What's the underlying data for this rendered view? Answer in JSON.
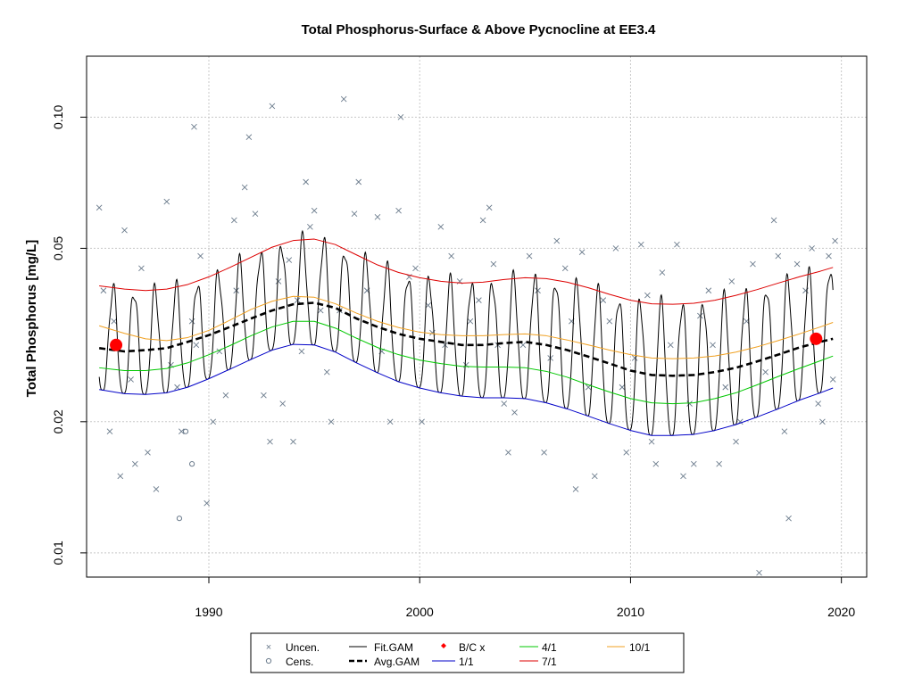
{
  "chart_data": {
    "type": "scatter",
    "title": "Total Phosphorus-Surface & Above Pycnocline at EE3.4",
    "xlabel": "",
    "ylabel": "Total Phosphorus [mg/L]",
    "y_scale": "log",
    "xlim": [
      1984.2,
      2021.2
    ],
    "ylim": [
      0.0088,
      0.138
    ],
    "x_ticks": [
      1990,
      2000,
      2010,
      2020
    ],
    "y_ticks": [
      0.01,
      0.02,
      0.05,
      0.1
    ],
    "y_tick_labels": [
      "0.01",
      "0.02",
      "0.05",
      "0.10"
    ],
    "grid": true,
    "legend_position": "bottom",
    "legend": [
      {
        "label": "Uncen.",
        "symbol": "x",
        "color": "#6b7b8c"
      },
      {
        "label": "Cens.",
        "symbol": "circle",
        "color": "#6b7b8c"
      },
      {
        "label": "Fit.GAM",
        "symbol": "line",
        "color": "#000000"
      },
      {
        "label": "Avg.GAM",
        "symbol": "dashed",
        "color": "#000000"
      },
      {
        "label": "B/C x",
        "symbol": "diamond",
        "color": "#ff0000"
      },
      {
        "label": "1/1",
        "symbol": "line",
        "color": "#0000c8"
      },
      {
        "label": "4/1",
        "symbol": "line",
        "color": "#00c800"
      },
      {
        "label": "7/1",
        "symbol": "line",
        "color": "#dd0000"
      },
      {
        "label": "10/1",
        "symbol": "line",
        "color": "#f0a020"
      }
    ],
    "colors": {
      "uncensored": "#6b7b8c",
      "fit_gam": "#000000",
      "avg_gam": "#000000",
      "baseline_current": "#ff0000",
      "jan_1": "#0000c8",
      "apr_1": "#00c800",
      "jul_1": "#dd0000",
      "oct_1": "#f0a020",
      "grid": "#c8c8c8"
    },
    "series": [
      {
        "name": "Avg.GAM",
        "x": [
          1984.8,
          1986,
          1987,
          1988,
          1989,
          1990,
          1991,
          1992,
          1993,
          1994,
          1995,
          1996,
          1997,
          1998,
          1999,
          2000,
          2001,
          2002,
          2003,
          2004,
          2005,
          2006,
          2007,
          2008,
          2009,
          2010,
          2011,
          2012,
          2013,
          2014,
          2015,
          2016,
          2017,
          2018,
          2019,
          2019.6
        ],
        "y": [
          0.0295,
          0.029,
          0.0292,
          0.0295,
          0.0305,
          0.0316,
          0.033,
          0.0345,
          0.036,
          0.0372,
          0.0375,
          0.0365,
          0.0345,
          0.033,
          0.0318,
          0.031,
          0.0305,
          0.03,
          0.03,
          0.0303,
          0.0305,
          0.03,
          0.0292,
          0.0282,
          0.0272,
          0.0262,
          0.0256,
          0.0255,
          0.0256,
          0.026,
          0.0266,
          0.0275,
          0.0285,
          0.0296,
          0.0305,
          0.031
        ]
      },
      {
        "name": "1/1",
        "x": [
          1984.8,
          1986,
          1987,
          1988,
          1989,
          1990,
          1991,
          1992,
          1993,
          1994,
          1995,
          1996,
          1997,
          1998,
          1999,
          2000,
          2001,
          2002,
          2003,
          2004,
          2005,
          2006,
          2007,
          2008,
          2009,
          2010,
          2011,
          2012,
          2013,
          2014,
          2015,
          2016,
          2017,
          2018,
          2019,
          2019.6
        ],
        "y": [
          0.0237,
          0.0232,
          0.0231,
          0.0233,
          0.024,
          0.0251,
          0.0264,
          0.0278,
          0.0292,
          0.0301,
          0.03,
          0.0289,
          0.0273,
          0.0259,
          0.0247,
          0.0239,
          0.0233,
          0.0229,
          0.0227,
          0.0227,
          0.0226,
          0.0221,
          0.0214,
          0.0206,
          0.0198,
          0.0191,
          0.0186,
          0.0186,
          0.0187,
          0.0191,
          0.0197,
          0.0205,
          0.0214,
          0.0224,
          0.0233,
          0.0239
        ]
      },
      {
        "name": "4/1",
        "x": [
          1984.8,
          1986,
          1987,
          1988,
          1989,
          1990,
          1991,
          1992,
          1993,
          1994,
          1995,
          1996,
          1997,
          1998,
          1999,
          2000,
          2001,
          2002,
          2003,
          2004,
          2005,
          2006,
          2007,
          2008,
          2009,
          2010,
          2011,
          2012,
          2013,
          2014,
          2015,
          2016,
          2017,
          2018,
          2019,
          2019.6
        ],
        "y": [
          0.0266,
          0.0262,
          0.0262,
          0.0265,
          0.0273,
          0.0285,
          0.0299,
          0.0315,
          0.033,
          0.034,
          0.034,
          0.0328,
          0.0311,
          0.0296,
          0.0285,
          0.0277,
          0.0272,
          0.0268,
          0.0267,
          0.0267,
          0.0266,
          0.0261,
          0.0253,
          0.0243,
          0.0234,
          0.0226,
          0.0221,
          0.022,
          0.0221,
          0.0226,
          0.0233,
          0.0243,
          0.0254,
          0.0265,
          0.0276,
          0.0283
        ]
      },
      {
        "name": "7/1",
        "x": [
          1984.8,
          1986,
          1987,
          1988,
          1989,
          1990,
          1991,
          1992,
          1993,
          1994,
          1995,
          1996,
          1997,
          1998,
          1999,
          2000,
          2001,
          2002,
          2003,
          2004,
          2005,
          2006,
          2007,
          2008,
          2009,
          2010,
          2011,
          2012,
          2013,
          2014,
          2015,
          2016,
          2017,
          2018,
          2019,
          2019.6
        ],
        "y": [
          0.041,
          0.0403,
          0.04,
          0.0403,
          0.0413,
          0.043,
          0.0452,
          0.0477,
          0.0503,
          0.0521,
          0.0525,
          0.051,
          0.0483,
          0.0458,
          0.044,
          0.0428,
          0.042,
          0.0416,
          0.0418,
          0.0424,
          0.0428,
          0.0426,
          0.0418,
          0.0406,
          0.0392,
          0.038,
          0.0373,
          0.0372,
          0.0374,
          0.038,
          0.039,
          0.0402,
          0.0416,
          0.043,
          0.0443,
          0.0452
        ]
      },
      {
        "name": "10/1",
        "x": [
          1984.8,
          1986,
          1987,
          1988,
          1989,
          1990,
          1991,
          1992,
          1993,
          1994,
          1995,
          1996,
          1997,
          1998,
          1999,
          2000,
          2001,
          2002,
          2003,
          2004,
          2005,
          2006,
          2007,
          2008,
          2009,
          2010,
          2011,
          2012,
          2013,
          2014,
          2015,
          2016,
          2017,
          2018,
          2019,
          2019.6
        ],
        "y": [
          0.0332,
          0.0319,
          0.031,
          0.0307,
          0.0312,
          0.0324,
          0.0342,
          0.0362,
          0.0378,
          0.0388,
          0.0386,
          0.0373,
          0.0355,
          0.034,
          0.0329,
          0.0321,
          0.0317,
          0.0315,
          0.0315,
          0.0317,
          0.0318,
          0.0315,
          0.0308,
          0.03,
          0.0292,
          0.0285,
          0.028,
          0.0279,
          0.028,
          0.0283,
          0.0289,
          0.0297,
          0.0307,
          0.0318,
          0.033,
          0.0338
        ]
      },
      {
        "name": "B/C x",
        "x": [
          1985.6,
          2018.8
        ],
        "y": [
          0.03,
          0.031
        ]
      },
      {
        "name": "Uncen.",
        "x": [
          1984.8,
          1985.0,
          1985.3,
          1985.5,
          1985.8,
          1986.0,
          1986.3,
          1986.5,
          1986.8,
          1987.1,
          1987.5,
          1988.0,
          1988.2,
          1988.5,
          1988.7,
          1989.2,
          1989.3,
          1989.4,
          1989.6,
          1989.9,
          1990.2,
          1990.5,
          1990.8,
          1991.2,
          1991.3,
          1991.7,
          1991.9,
          1992.2,
          1992.6,
          1992.9,
          1993.0,
          1993.3,
          1993.5,
          1993.8,
          1994.0,
          1994.2,
          1994.4,
          1994.6,
          1994.8,
          1995.0,
          1995.3,
          1995.6,
          1995.8,
          1996.2,
          1996.4,
          1996.9,
          1997.1,
          1997.5,
          1998.0,
          1998.2,
          1998.6,
          1999.0,
          1999.1,
          1999.5,
          1999.8,
          2000.1,
          2000.4,
          2000.6,
          2001.0,
          2001.2,
          2001.5,
          2001.9,
          2002.2,
          2002.4,
          2002.8,
          2003.0,
          2003.3,
          2003.5,
          2003.7,
          2004.0,
          2004.2,
          2004.5,
          2004.9,
          2005.2,
          2005.6,
          2005.9,
          2006.2,
          2006.5,
          2006.9,
          2007.2,
          2007.4,
          2007.7,
          2008.0,
          2008.3,
          2008.7,
          2009.0,
          2009.3,
          2009.6,
          2009.8,
          2010.2,
          2010.5,
          2010.8,
          2011.0,
          2011.2,
          2011.5,
          2011.9,
          2012.2,
          2012.5,
          2012.8,
          2013.0,
          2013.3,
          2013.7,
          2013.9,
          2014.2,
          2014.5,
          2014.8,
          2015.0,
          2015.2,
          2015.5,
          2015.8,
          2016.1,
          2016.4,
          2016.8,
          2017.0,
          2017.3,
          2017.5,
          2017.9,
          2018.3,
          2018.6,
          2018.9,
          2019.1,
          2019.4,
          2019.6,
          2019.7
        ],
        "y": [
          0.062,
          0.04,
          0.019,
          0.034,
          0.015,
          0.055,
          0.025,
          0.016,
          0.045,
          0.017,
          0.014,
          0.064,
          0.027,
          0.024,
          0.019,
          0.034,
          0.095,
          0.03,
          0.048,
          0.013,
          0.02,
          0.029,
          0.023,
          0.058,
          0.04,
          0.069,
          0.09,
          0.06,
          0.023,
          0.018,
          0.106,
          0.042,
          0.022,
          0.047,
          0.018,
          0.038,
          0.029,
          0.071,
          0.056,
          0.061,
          0.036,
          0.026,
          0.02,
          0.036,
          0.11,
          0.06,
          0.071,
          0.04,
          0.059,
          0.029,
          0.02,
          0.061,
          0.1,
          0.043,
          0.045,
          0.02,
          0.037,
          0.032,
          0.056,
          0.03,
          0.048,
          0.042,
          0.027,
          0.034,
          0.038,
          0.058,
          0.062,
          0.046,
          0.03,
          0.022,
          0.017,
          0.021,
          0.03,
          0.048,
          0.04,
          0.017,
          0.028,
          0.052,
          0.045,
          0.034,
          0.014,
          0.049,
          0.024,
          0.015,
          0.038,
          0.034,
          0.05,
          0.024,
          0.017,
          0.028,
          0.051,
          0.039,
          0.018,
          0.016,
          0.044,
          0.03,
          0.051,
          0.015,
          0.022,
          0.016,
          0.035,
          0.04,
          0.03,
          0.016,
          0.024,
          0.042,
          0.018,
          0.02,
          0.034,
          0.046,
          0.009,
          0.026,
          0.058,
          0.048,
          0.019,
          0.012,
          0.046,
          0.04,
          0.05,
          0.022,
          0.02,
          0.048,
          0.025,
          0.052
        ]
      },
      {
        "name": "Cens.",
        "x": [
          1988.6,
          1988.9,
          1989.2
        ],
        "y": [
          0.012,
          0.019,
          0.016
        ]
      }
    ]
  }
}
